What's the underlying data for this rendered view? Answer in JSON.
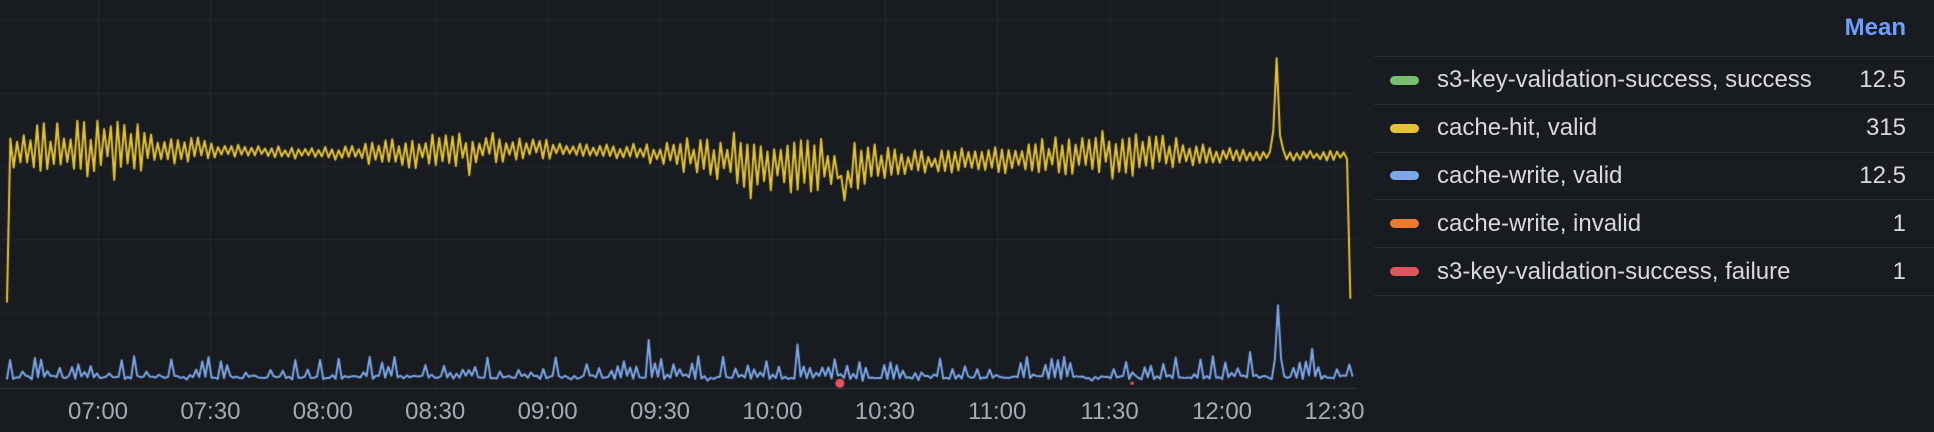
{
  "panel": {
    "type": "grafana-time-series-panel",
    "background_color": "#181B1F",
    "text_color": "#D8D9DC",
    "secondary_text_color": "#A7AAB1",
    "accent_link_color": "#6E9FFF",
    "gridline_color": "rgba(204,204,220,0.07)"
  },
  "chart_data": {
    "type": "line",
    "title": "",
    "x_axis": {
      "tick_labels": [
        "07:00",
        "07:30",
        "08:00",
        "08:30",
        "09:00",
        "09:30",
        "10:00",
        "10:30",
        "11:00",
        "11:30",
        "12:00",
        "12:30"
      ],
      "tick_interval": "30m",
      "visible_range": [
        "06:34",
        "12:36"
      ],
      "grid": true
    },
    "y_axis": {
      "labels_visible": false,
      "range": [
        0,
        527
      ],
      "gridline_values": [
        100,
        200,
        300,
        400,
        500
      ],
      "grid": true
    },
    "series": [
      {
        "name": "s3-key-validation-success, success",
        "color": "#77BE6F",
        "mean": 12.5,
        "visible_in_plot": false,
        "note": "overlaps the cache-write, valid line near value 12"
      },
      {
        "name": "cache-hit, valid",
        "color": "#E6C335",
        "mean": 315,
        "style": "noisy-line",
        "approx_value_band": [
          250,
          390
        ],
        "anomalies": [
          {
            "time": "06:36",
            "value": 115,
            "kind": "initial-dip"
          },
          {
            "time": "10:19",
            "value": 253,
            "kind": "dip"
          },
          {
            "time": "12:15",
            "value": 447,
            "kind": "spike"
          },
          {
            "time": "12:35",
            "value": 120,
            "kind": "final-drop"
          }
        ]
      },
      {
        "name": "cache-write, valid",
        "color": "#7DA7EA",
        "mean": 12.5,
        "style": "noisy-line",
        "approx_value_band": [
          3,
          55
        ],
        "anomalies": [
          {
            "time": "12:15",
            "value": 110,
            "kind": "spike"
          }
        ]
      },
      {
        "name": "cache-write, invalid",
        "color": "#EE7A30",
        "mean": 1,
        "visible_in_plot": false,
        "note": "flat near 0, not visibly distinct"
      },
      {
        "name": "s3-key-validation-success, failure",
        "color": "#DF555E",
        "mean": 1,
        "style": "points",
        "points": [
          {
            "time": "10:18",
            "value": 1,
            "marker": "dot"
          },
          {
            "time": "11:36",
            "value": 1,
            "marker": "small-tick"
          }
        ]
      }
    ],
    "legend": {
      "position": "right",
      "header": "Mean",
      "rows": [
        {
          "label": "s3-key-validation-success, success",
          "color": "#77BE6F",
          "value": "12.5"
        },
        {
          "label": "cache-hit, valid",
          "color": "#E6C335",
          "value": "315"
        },
        {
          "label": "cache-write, valid",
          "color": "#7DA7EA",
          "value": "12.5"
        },
        {
          "label": "cache-write, invalid",
          "color": "#EE7A30",
          "value": "1"
        },
        {
          "label": "s3-key-validation-success, failure",
          "color": "#DF555E",
          "value": "1"
        }
      ]
    }
  }
}
